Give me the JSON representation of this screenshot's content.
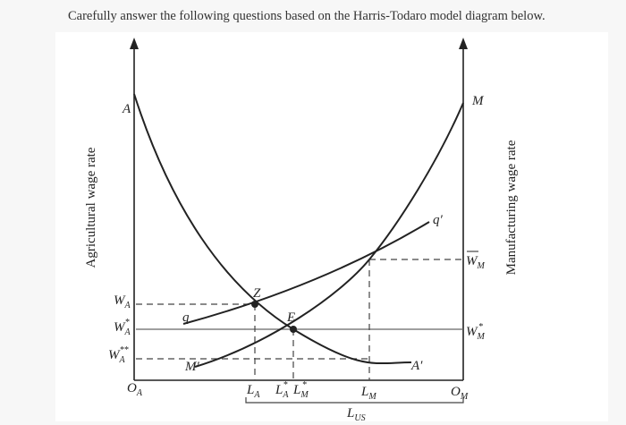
{
  "question": "Carefully answer the following questions based on the Harris-Todaro model diagram below.",
  "axes": {
    "left": "Agricultural wage rate",
    "right": "Manufacturing wage rate"
  },
  "labels": {
    "A": "A",
    "A_prime": "A′",
    "M": "M",
    "M_prime": "M′",
    "q": "q",
    "q_prime": "q′",
    "Z": "Z",
    "E": "E",
    "W_A": {
      "base": "W",
      "sub": "A"
    },
    "W_A_star": {
      "base": "W",
      "sub": "A",
      "sup": "*"
    },
    "W_A_2star": {
      "base": "W",
      "sub": "A",
      "sup": "**"
    },
    "W_M_bar": {
      "base": "W",
      "sub": "M"
    },
    "W_M_star": {
      "base": "W",
      "sub": "M",
      "sup": "*"
    },
    "O_A": {
      "base": "O",
      "sub": "A"
    },
    "O_M": {
      "base": "O",
      "sub": "M"
    },
    "L_A": {
      "base": "L",
      "sub": "A"
    },
    "L_A_star": {
      "base": "L",
      "sub": "A",
      "sup": "*"
    },
    "L_M_star": {
      "base": "L",
      "sub": "M",
      "sup": "*"
    },
    "L_M": {
      "base": "L",
      "sub": "M"
    },
    "L_US": {
      "base": "L",
      "sub": "US"
    }
  }
}
